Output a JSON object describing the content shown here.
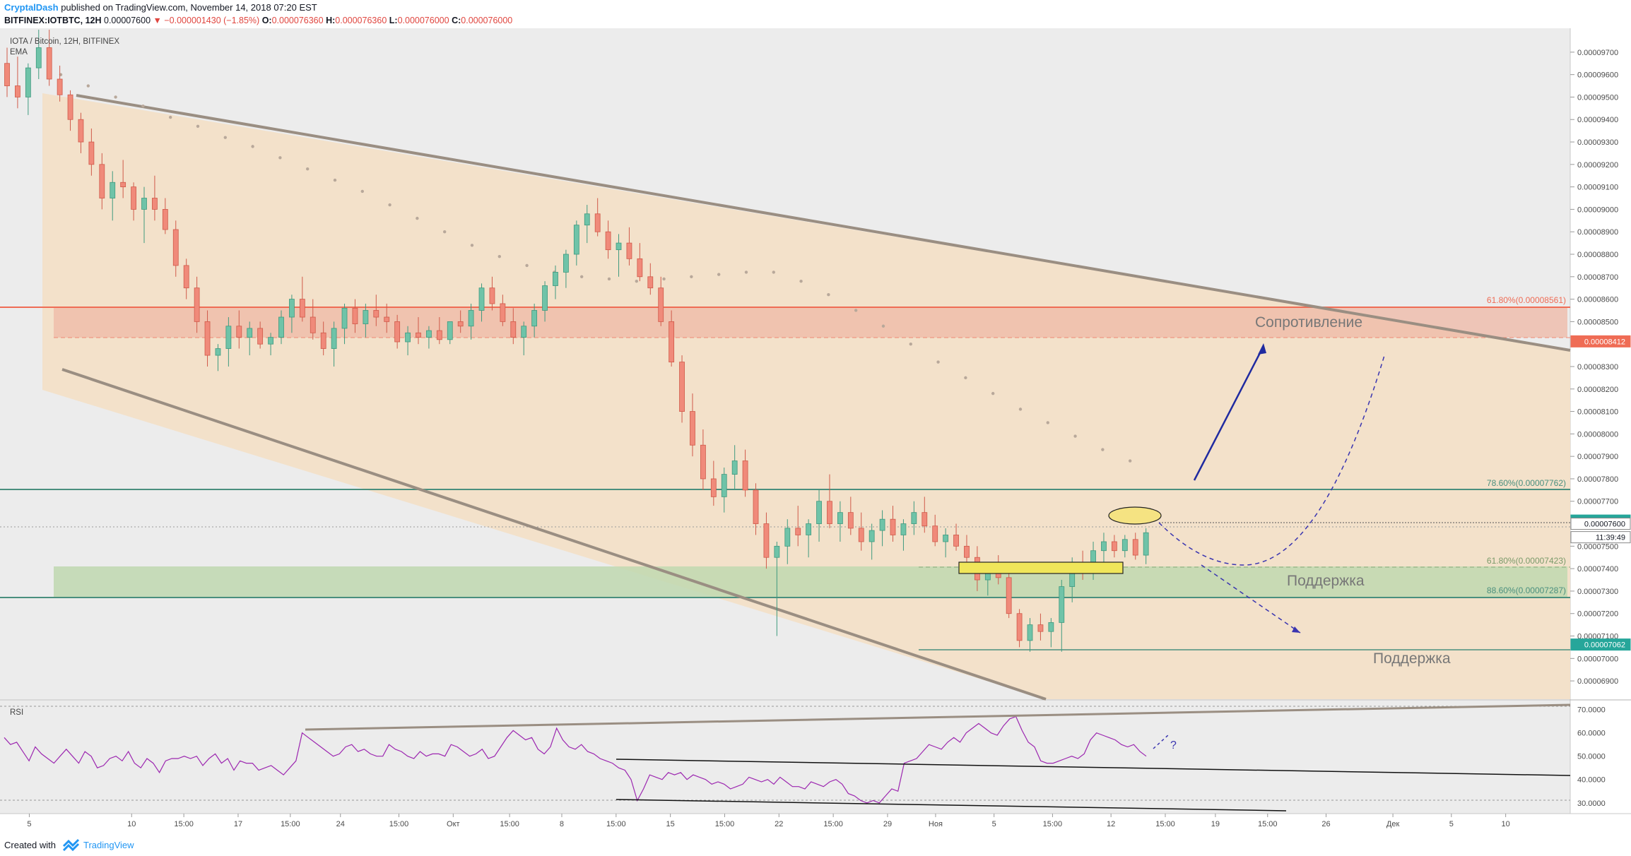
{
  "header": {
    "author": "CryptalDash",
    "published_text": "published on TradingView.com, November 14, 2018 07:20 EST",
    "symbol": "BITFINEX:IOTBTC, 12H",
    "last": "0.00007600",
    "change": "▼ −0.000001430 (−1.85%)",
    "ohlc": [
      {
        "label": "O:",
        "value": "0.000076360"
      },
      {
        "label": "H:",
        "value": "0.000076360"
      },
      {
        "label": "L:",
        "value": "0.000076000"
      },
      {
        "label": "C:",
        "value": "0.000076000"
      }
    ]
  },
  "legend": {
    "title": "IOTA / Bitcoin, 12H, BITFINEX",
    "ema": "EMA"
  },
  "price_axis": {
    "min": 6.85e-05,
    "max": 9.775e-05,
    "ticks": [
      "0.00009700",
      "0.00009600",
      "0.00009500",
      "0.00009400",
      "0.00009300",
      "0.00009200",
      "0.00009100",
      "0.00009000",
      "0.00008900",
      "0.00008800",
      "0.00008700",
      "0.00008600",
      "0.00008500",
      "0.00008300",
      "0.00008200",
      "0.00008100",
      "0.00008000",
      "0.00007900",
      "0.00007800",
      "0.00007700",
      "0.00007500",
      "0.00007400",
      "0.00007300",
      "0.00007200",
      "0.00007100",
      "0.00007000",
      "0.00006900"
    ],
    "tick_values": [
      9.7e-05,
      9.6e-05,
      9.5e-05,
      9.4e-05,
      9.3e-05,
      9.2e-05,
      9.1e-05,
      9e-05,
      8.9e-05,
      8.8e-05,
      8.7e-05,
      8.6e-05,
      8.5e-05,
      8.3e-05,
      8.2e-05,
      8.1e-05,
      8e-05,
      7.9e-05,
      7.8e-05,
      7.7e-05,
      7.5e-05,
      7.4e-05,
      7.3e-05,
      7.2e-05,
      7.1e-05,
      7e-05,
      6.9e-05
    ],
    "tags": [
      {
        "text": "0.00008412",
        "value": 8.412e-05,
        "bg": "#ef6c55",
        "fg": "#ffffff"
      },
      {
        "text": "0.00007614",
        "value": 7.614e-05,
        "bg": "#26a69a",
        "fg": "#ffffff"
      },
      {
        "text": "0.00007600",
        "value": 7.6e-05,
        "bg": "#ffffff",
        "fg": "#131722"
      },
      {
        "text": "11:39:49",
        "value": 7.54e-05,
        "bg": "#ffffff",
        "fg": "#131722"
      },
      {
        "text": "0.00007062",
        "value": 7.062e-05,
        "bg": "#26a69a",
        "fg": "#ffffff"
      }
    ]
  },
  "fib_levels": [
    {
      "label": "61.80%(0.00008561)",
      "value": 8.561e-05,
      "color": "#ef6c55"
    },
    {
      "label": "78.60%(0.00007762)",
      "value": 7.762e-05,
      "color": "#4a8f7e"
    },
    {
      "label": "61.80%(0.00007423)",
      "value": 7.423e-05,
      "color": "#7a9a6a"
    },
    {
      "label": "88.60%(0.00007287)",
      "value": 7.287e-05,
      "color": "#4a8f7e"
    }
  ],
  "annotations": {
    "resistance": "Сопротивление",
    "support_1": "Поддержка",
    "support_2": "Поддержка",
    "question": "?"
  },
  "rsi": {
    "label": "RSI",
    "min": 26,
    "max": 72,
    "ticks": [
      "70.0000",
      "60.0000",
      "50.0000",
      "40.0000",
      "30.0000"
    ],
    "tick_values": [
      70,
      60,
      50,
      40,
      30
    ],
    "values": [
      58,
      55,
      56,
      52,
      48,
      54,
      51,
      49,
      47,
      50,
      53,
      50,
      47,
      52,
      50,
      45,
      46,
      49,
      50,
      48,
      52,
      47,
      45,
      49,
      47,
      43,
      48,
      49,
      49,
      50,
      49,
      50,
      46,
      49,
      51,
      47,
      49,
      44,
      48,
      47,
      47,
      44,
      45,
      46,
      44,
      42,
      45,
      48,
      60,
      58,
      56,
      54,
      52,
      50,
      51,
      54,
      55,
      52,
      53,
      51,
      50,
      50,
      55,
      53,
      52,
      50,
      49,
      52,
      50,
      51,
      51,
      50,
      55,
      54,
      52,
      50,
      51,
      53,
      49,
      50,
      54,
      58,
      61,
      59,
      57,
      58,
      53,
      51,
      54,
      62,
      57,
      54,
      53,
      55,
      52,
      51,
      49,
      48,
      47,
      45,
      44,
      40,
      31,
      36,
      42,
      41,
      40,
      43,
      42,
      43,
      40,
      42,
      41,
      40,
      38,
      39,
      38,
      36,
      37,
      38,
      41,
      40,
      39,
      40,
      38,
      41,
      39,
      37,
      37,
      36,
      39,
      38,
      37,
      39,
      40,
      38,
      34,
      33,
      31,
      30,
      31,
      30,
      33,
      36,
      35,
      47,
      48,
      49,
      52,
      55,
      54,
      53,
      56,
      58,
      56,
      60,
      62,
      64,
      62,
      60,
      59,
      63,
      66,
      67,
      61,
      56,
      54,
      48,
      47,
      47,
      48,
      49,
      50,
      49,
      51,
      57,
      60,
      59,
      58,
      57,
      55,
      54,
      55,
      52,
      50
    ]
  },
  "time_axis": {
    "labels": [
      "5",
      "10",
      "15:00",
      "17",
      "15:00",
      "24",
      "15:00",
      "Окт",
      "15:00",
      "8",
      "15:00",
      "15",
      "15:00",
      "22",
      "15:00",
      "29",
      "Ноя",
      "5",
      "15:00",
      "12",
      "15:00",
      "19",
      "15:00",
      "26",
      "Дек",
      "5",
      "10"
    ],
    "bar_index": [
      12,
      61,
      86,
      112,
      137,
      161,
      189,
      215,
      242,
      267,
      293,
      319,
      345,
      371,
      397,
      423,
      446,
      474,
      502,
      530,
      556,
      580,
      605,
      633,
      665,
      693,
      719
    ]
  },
  "candles": [
    [
      9.65e-05,
      9.72e-05,
      9.5e-05,
      9.55e-05
    ],
    [
      9.55e-05,
      9.68e-05,
      9.45e-05,
      9.5e-05
    ],
    [
      9.5e-05,
      9.65e-05,
      9.42e-05,
      9.63e-05
    ],
    [
      9.63e-05,
      9.8e-05,
      9.58e-05,
      9.72e-05
    ],
    [
      9.72e-05,
      9.8e-05,
      9.55e-05,
      9.58e-05
    ],
    [
      9.58e-05,
      9.64e-05,
      9.48e-05,
      9.51e-05
    ],
    [
      9.51e-05,
      9.53e-05,
      9.35e-05,
      9.4e-05
    ],
    [
      9.4e-05,
      9.43e-05,
      9.25e-05,
      9.3e-05
    ],
    [
      9.3e-05,
      9.36e-05,
      9.15e-05,
      9.2e-05
    ],
    [
      9.2e-05,
      9.25e-05,
      9e-05,
      9.05e-05
    ],
    [
      9.05e-05,
      9.17e-05,
      8.95e-05,
      9.12e-05
    ],
    [
      9.12e-05,
      9.22e-05,
      9.05e-05,
      9.1e-05
    ],
    [
      9.1e-05,
      9.12e-05,
      8.95e-05,
      9e-05
    ],
    [
      9e-05,
      9.1e-05,
      8.85e-05,
      9.05e-05
    ],
    [
      9.05e-05,
      9.15e-05,
      8.95e-05,
      9e-05
    ],
    [
      9e-05,
      9.05e-05,
      8.89e-05,
      8.91e-05
    ],
    [
      8.91e-05,
      8.95e-05,
      8.7e-05,
      8.75e-05
    ],
    [
      8.75e-05,
      8.78e-05,
      8.6e-05,
      8.65e-05
    ],
    [
      8.65e-05,
      8.7e-05,
      8.45e-05,
      8.5e-05
    ],
    [
      8.5e-05,
      8.55e-05,
      8.3e-05,
      8.35e-05
    ],
    [
      8.35e-05,
      8.4e-05,
      8.28e-05,
      8.38e-05
    ],
    [
      8.38e-05,
      8.52e-05,
      8.3e-05,
      8.48e-05
    ],
    [
      8.48e-05,
      8.55e-05,
      8.38e-05,
      8.43e-05
    ],
    [
      8.43e-05,
      8.5e-05,
      8.35e-05,
      8.47e-05
    ],
    [
      8.47e-05,
      8.5e-05,
      8.38e-05,
      8.4e-05
    ],
    [
      8.4e-05,
      8.45e-05,
      8.35e-05,
      8.43e-05
    ],
    [
      8.43e-05,
      8.55e-05,
      8.4e-05,
      8.52e-05
    ],
    [
      8.52e-05,
      8.62e-05,
      8.45e-05,
      8.6e-05
    ],
    [
      8.6e-05,
      8.7e-05,
      8.5e-05,
      8.52e-05
    ],
    [
      8.52e-05,
      8.6e-05,
      8.42e-05,
      8.45e-05
    ],
    [
      8.45e-05,
      8.5e-05,
      8.35e-05,
      8.38e-05
    ],
    [
      8.38e-05,
      8.5e-05,
      8.3e-05,
      8.47e-05
    ],
    [
      8.47e-05,
      8.58e-05,
      8.4e-05,
      8.56e-05
    ],
    [
      8.56e-05,
      8.6e-05,
      8.45e-05,
      8.49e-05
    ],
    [
      8.49e-05,
      8.58e-05,
      8.43e-05,
      8.55e-05
    ],
    [
      8.55e-05,
      8.62e-05,
      8.48e-05,
      8.52e-05
    ],
    [
      8.52e-05,
      8.58e-05,
      8.45e-05,
      8.5e-05
    ],
    [
      8.5e-05,
      8.53e-05,
      8.38e-05,
      8.41e-05
    ],
    [
      8.41e-05,
      8.48e-05,
      8.35e-05,
      8.45e-05
    ],
    [
      8.45e-05,
      8.52e-05,
      8.4e-05,
      8.43e-05
    ],
    [
      8.43e-05,
      8.48e-05,
      8.38e-05,
      8.46e-05
    ],
    [
      8.46e-05,
      8.52e-05,
      8.4e-05,
      8.42e-05
    ],
    [
      8.42e-05,
      8.5e-05,
      8.4e-05,
      8.5e-05
    ],
    [
      8.5e-05,
      8.55e-05,
      8.45e-05,
      8.48e-05
    ],
    [
      8.48e-05,
      8.58e-05,
      8.42e-05,
      8.55e-05
    ],
    [
      8.55e-05,
      8.67e-05,
      8.5e-05,
      8.65e-05
    ],
    [
      8.65e-05,
      8.7e-05,
      8.55e-05,
      8.58e-05
    ],
    [
      8.58e-05,
      8.62e-05,
      8.48e-05,
      8.5e-05
    ],
    [
      8.5e-05,
      8.56e-05,
      8.4e-05,
      8.43e-05
    ],
    [
      8.43e-05,
      8.5e-05,
      8.35e-05,
      8.48e-05
    ],
    [
      8.48e-05,
      8.58e-05,
      8.43e-05,
      8.55e-05
    ],
    [
      8.55e-05,
      8.68e-05,
      8.5e-05,
      8.66e-05
    ],
    [
      8.66e-05,
      8.75e-05,
      8.6e-05,
      8.72e-05
    ],
    [
      8.72e-05,
      8.82e-05,
      8.65e-05,
      8.8e-05
    ],
    [
      8.8e-05,
      8.95e-05,
      8.75e-05,
      8.93e-05
    ],
    [
      8.93e-05,
      9.02e-05,
      8.85e-05,
      8.98e-05
    ],
    [
      8.98e-05,
      9.05e-05,
      8.88e-05,
      8.9e-05
    ],
    [
      8.9e-05,
      8.95e-05,
      8.78e-05,
      8.82e-05
    ],
    [
      8.82e-05,
      8.89e-05,
      8.7e-05,
      8.85e-05
    ],
    [
      8.85e-05,
      8.92e-05,
      8.75e-05,
      8.78e-05
    ],
    [
      8.78e-05,
      8.85e-05,
      8.68e-05,
      8.7e-05
    ],
    [
      8.7e-05,
      8.76e-05,
      8.62e-05,
      8.65e-05
    ],
    [
      8.65e-05,
      8.7e-05,
      8.48e-05,
      8.5e-05
    ],
    [
      8.5e-05,
      8.55e-05,
      8.3e-05,
      8.32e-05
    ],
    [
      8.32e-05,
      8.35e-05,
      8.05e-05,
      8.1e-05
    ],
    [
      8.1e-05,
      8.18e-05,
      7.9e-05,
      7.95e-05
    ],
    [
      7.95e-05,
      8.02e-05,
      7.75e-05,
      7.8e-05
    ],
    [
      7.8e-05,
      7.88e-05,
      7.68e-05,
      7.72e-05
    ],
    [
      7.72e-05,
      7.85e-05,
      7.65e-05,
      7.82e-05
    ],
    [
      7.82e-05,
      7.95e-05,
      7.75e-05,
      7.88e-05
    ],
    [
      7.88e-05,
      7.93e-05,
      7.72e-05,
      7.75e-05
    ],
    [
      7.75e-05,
      7.78e-05,
      7.55e-05,
      7.6e-05
    ],
    [
      7.6e-05,
      7.65e-05,
      7.4e-05,
      7.45e-05
    ],
    [
      7.45e-05,
      7.52e-05,
      7.1e-05,
      7.5e-05
    ],
    [
      7.5e-05,
      7.62e-05,
      7.42e-05,
      7.58e-05
    ],
    [
      7.58e-05,
      7.68e-05,
      7.5e-05,
      7.55e-05
    ],
    [
      7.55e-05,
      7.62e-05,
      7.45e-05,
      7.6e-05
    ],
    [
      7.6e-05,
      7.75e-05,
      7.52e-05,
      7.7e-05
    ],
    [
      7.7e-05,
      7.82e-05,
      7.58e-05,
      7.6e-05
    ],
    [
      7.6e-05,
      7.7e-05,
      7.52e-05,
      7.65e-05
    ],
    [
      7.65e-05,
      7.72e-05,
      7.55e-05,
      7.58e-05
    ],
    [
      7.58e-05,
      7.65e-05,
      7.48e-05,
      7.52e-05
    ],
    [
      7.52e-05,
      7.6e-05,
      7.44e-05,
      7.57e-05
    ],
    [
      7.57e-05,
      7.66e-05,
      7.5e-05,
      7.62e-05
    ],
    [
      7.62e-05,
      7.68e-05,
      7.52e-05,
      7.55e-05
    ],
    [
      7.55e-05,
      7.62e-05,
      7.48e-05,
      7.6e-05
    ],
    [
      7.6e-05,
      7.7e-05,
      7.55e-05,
      7.65e-05
    ],
    [
      7.65e-05,
      7.72e-05,
      7.56e-05,
      7.59e-05
    ],
    [
      7.59e-05,
      7.64e-05,
      7.5e-05,
      7.52e-05
    ],
    [
      7.52e-05,
      7.58e-05,
      7.45e-05,
      7.55e-05
    ],
    [
      7.55e-05,
      7.6e-05,
      7.48e-05,
      7.5e-05
    ],
    [
      7.5e-05,
      7.55e-05,
      7.4e-05,
      7.45e-05
    ],
    [
      7.45e-05,
      7.5e-05,
      7.3e-05,
      7.35e-05
    ],
    [
      7.35e-05,
      7.42e-05,
      7.28e-05,
      7.4e-05
    ],
    [
      7.4e-05,
      7.46e-05,
      7.33e-05,
      7.36e-05
    ],
    [
      7.36e-05,
      7.4e-05,
      7.18e-05,
      7.2e-05
    ],
    [
      7.2e-05,
      7.22e-05,
      7.05e-05,
      7.08e-05
    ],
    [
      7.08e-05,
      7.18e-05,
      7.03e-05,
      7.15e-05
    ],
    [
      7.15e-05,
      7.2e-05,
      7.08e-05,
      7.12e-05
    ],
    [
      7.12e-05,
      7.18e-05,
      7.05e-05,
      7.16e-05
    ],
    [
      7.16e-05,
      7.35e-05,
      7.03e-05,
      7.32e-05
    ],
    [
      7.32e-05,
      7.45e-05,
      7.25e-05,
      7.42e-05
    ],
    [
      7.42e-05,
      7.48e-05,
      7.35e-05,
      7.4e-05
    ],
    [
      7.4e-05,
      7.52e-05,
      7.35e-05,
      7.48e-05
    ],
    [
      7.48e-05,
      7.56e-05,
      7.42e-05,
      7.52e-05
    ],
    [
      7.52e-05,
      7.55e-05,
      7.45e-05,
      7.48e-05
    ],
    [
      7.48e-05,
      7.55e-05,
      7.45e-05,
      7.53e-05
    ],
    [
      7.53e-05,
      7.56e-05,
      7.44e-05,
      7.46e-05
    ],
    [
      7.46e-05,
      7.58e-05,
      7.42e-05,
      7.56e-05
    ],
    [
      7.56e-05,
      7.72e-05,
      7.52e-05,
      7.7e-05
    ],
    [
      7.7e-05,
      7.78e-05,
      7.62e-05,
      7.66e-05
    ],
    [
      7.66e-05,
      7.75e-05,
      7.6e-05,
      7.72e-05
    ],
    [
      7.72e-05,
      7.85e-05,
      7.68e-05,
      7.8e-05
    ],
    [
      7.8e-05,
      7.98e-05,
      7.75e-05,
      7.95e-05
    ],
    [
      7.95e-05,
      8.02e-05,
      7.85e-05,
      7.88e-05
    ],
    [
      7.88e-05,
      7.92e-05,
      7.65e-05,
      7.68e-05
    ],
    [
      7.68e-05,
      7.75e-05,
      7.6e-05,
      7.65e-05
    ],
    [
      7.65e-05,
      7.72e-05,
      7.52e-05,
      7.55e-05
    ],
    [
      7.55e-05,
      7.65e-05,
      7.42e-05,
      7.45e-05
    ],
    [
      7.45e-05,
      7.52e-05,
      7.38e-05,
      7.48e-05
    ],
    [
      7.48e-05,
      7.55e-05,
      7.42e-05,
      7.45e-05
    ],
    [
      7.45e-05,
      7.55e-05,
      7.4e-05,
      7.52e-05
    ],
    [
      7.52e-05,
      7.6e-05,
      7.45e-05,
      7.57e-05
    ],
    [
      7.57e-05,
      7.66e-05,
      7.5e-05,
      7.62e-05
    ],
    [
      7.62e-05,
      7.8e-05,
      7.58e-05,
      7.78e-05
    ],
    [
      7.78e-05,
      7.88e-05,
      7.65e-05,
      7.72e-05
    ],
    [
      7.72e-05,
      7.82e-05,
      7.65e-05,
      7.68e-05
    ],
    [
      7.68e-05,
      7.82e-05,
      7.62e-05,
      7.72e-05
    ],
    [
      7.72e-05,
      7.85e-05,
      7.62e-05,
      7.65e-05
    ],
    [
      7.65e-05,
      7.7e-05,
      7.55e-05,
      7.62e-05
    ],
    [
      7.62e-05,
      7.7e-05,
      7.58e-05,
      7.64e-05
    ],
    [
      7.64e-05,
      7.68e-05,
      7.6e-05,
      7.6e-05
    ]
  ],
  "ema_values": [
    9.6e-05,
    9.55e-05,
    9.5e-05,
    9.46e-05,
    9.41e-05,
    9.37e-05,
    9.32e-05,
    9.28e-05,
    9.23e-05,
    9.18e-05,
    9.13e-05,
    9.08e-05,
    9.02e-05,
    8.96e-05,
    8.9e-05,
    8.84e-05,
    8.79e-05,
    8.75e-05,
    8.72e-05,
    8.7e-05,
    8.69e-05,
    8.68e-05,
    8.69e-05,
    8.7e-05,
    8.71e-05,
    8.72e-05,
    8.72e-05,
    8.68e-05,
    8.62e-05,
    8.55e-05,
    8.48e-05,
    8.4e-05,
    8.32e-05,
    8.25e-05,
    8.18e-05,
    8.11e-05,
    8.05e-05,
    7.99e-05,
    7.93e-05,
    7.88e-05,
    7.83e-05,
    7.79e-05,
    7.75e-05,
    7.72e-05,
    7.7e-05,
    7.68e-05,
    7.66e-05,
    7.64e-05,
    7.64e-05,
    7.65e-05,
    7.66e-05
  ]
}
